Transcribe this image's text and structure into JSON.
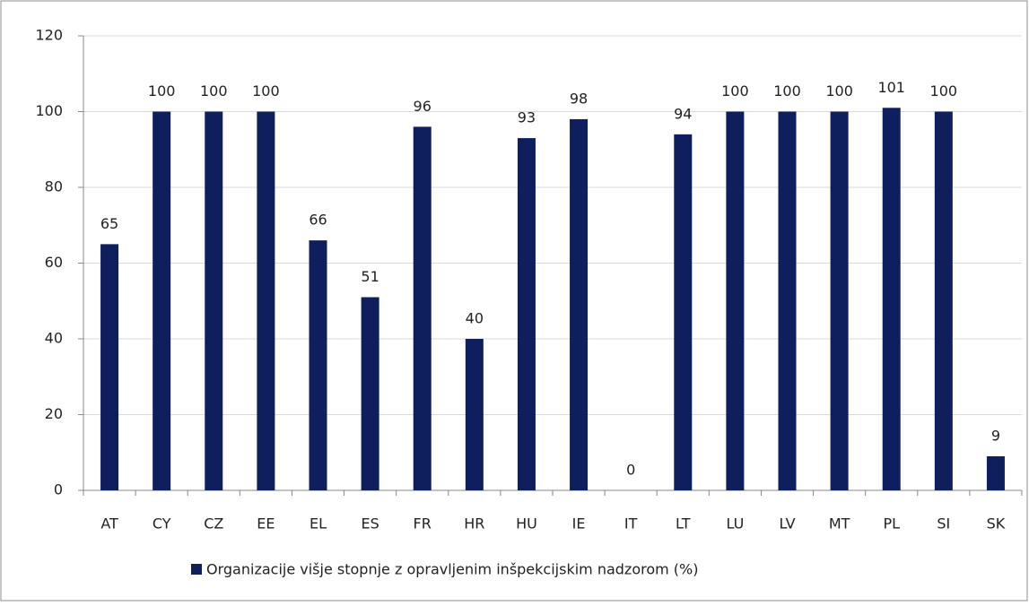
{
  "chart_data": {
    "type": "bar",
    "categories": [
      "AT",
      "CY",
      "CZ",
      "EE",
      "EL",
      "ES",
      "FR",
      "HR",
      "HU",
      "IE",
      "IT",
      "LT",
      "LU",
      "LV",
      "MT",
      "PL",
      "SI",
      "SK"
    ],
    "series": [
      {
        "name": "Organizacije višje stopnje z opravljenim inšpekcijskim nadzorom (%)",
        "color": "#0f1f5e",
        "values": [
          65,
          100,
          100,
          100,
          66,
          51,
          96,
          40,
          93,
          98,
          0,
          94,
          100,
          100,
          100,
          101,
          100,
          9
        ]
      }
    ],
    "ylim": [
      0,
      120
    ],
    "yticks": [
      0,
      20,
      40,
      60,
      80,
      100,
      120
    ],
    "grid": true,
    "legend": "bottom"
  }
}
